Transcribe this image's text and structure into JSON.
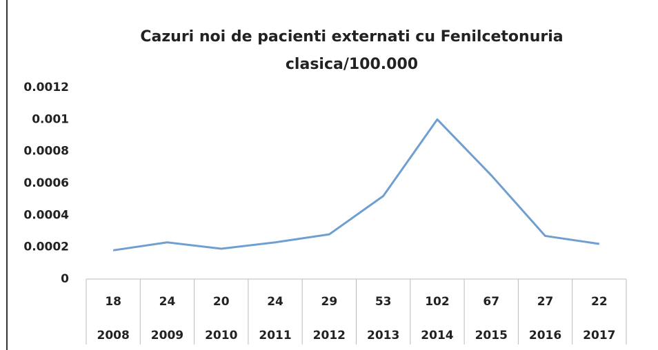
{
  "chart_data": {
    "type": "line",
    "title": "Cazuri noi de pacienti externati cu Fenilcetonuria clasica/100.000",
    "categories": [
      "2008",
      "2009",
      "2010",
      "2011",
      "2012",
      "2013",
      "2014",
      "2015",
      "2016",
      "2017"
    ],
    "counts": [
      "18",
      "24",
      "20",
      "24",
      "29",
      "53",
      "102",
      "67",
      "27",
      "22"
    ],
    "values": [
      0.00018,
      0.00023,
      0.00019,
      0.00023,
      0.00028,
      0.00052,
      0.001,
      0.00065,
      0.00027,
      0.00022
    ],
    "color": "#6f9fd0",
    "ylim": [
      0,
      0.0012
    ],
    "yticks": [
      0,
      0.0002,
      0.0004,
      0.0006,
      0.0008,
      0.001,
      0.0012
    ],
    "grid": false
  }
}
